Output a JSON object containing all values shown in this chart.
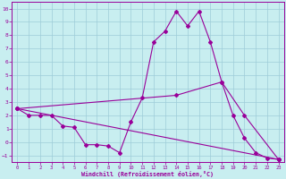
{
  "xlabel": "Windchill (Refroidissement éolien,°C)",
  "xlim": [
    -0.5,
    23.5
  ],
  "ylim": [
    -1.5,
    10.5
  ],
  "xticks": [
    0,
    1,
    2,
    3,
    4,
    5,
    6,
    7,
    8,
    9,
    10,
    11,
    12,
    13,
    14,
    15,
    16,
    17,
    18,
    19,
    20,
    21,
    22,
    23
  ],
  "yticks": [
    -1,
    0,
    1,
    2,
    3,
    4,
    5,
    6,
    7,
    8,
    9,
    10
  ],
  "background_color": "#c8eef0",
  "line_color": "#990099",
  "grid_color": "#9eccd8",
  "line1_x": [
    0,
    1,
    2,
    3,
    4,
    5,
    6,
    7,
    8,
    9,
    10,
    11,
    12,
    13,
    14,
    15,
    16,
    17,
    18,
    19,
    20,
    21,
    22,
    23
  ],
  "line1_y": [
    2.5,
    2.0,
    2.0,
    2.0,
    1.2,
    1.1,
    -0.2,
    -0.2,
    -0.3,
    -0.8,
    1.5,
    3.3,
    7.5,
    8.3,
    9.8,
    8.7,
    9.8,
    7.5,
    4.5,
    2.0,
    0.3,
    -0.8,
    -1.2,
    -1.3
  ],
  "line2_x": [
    0,
    23
  ],
  "line2_y": [
    2.5,
    -1.3
  ],
  "line3_x": [
    0,
    14,
    18,
    20,
    23
  ],
  "line3_y": [
    2.5,
    3.5,
    4.5,
    2.0,
    -1.3
  ],
  "figsize": [
    3.2,
    2.0
  ],
  "dpi": 100
}
